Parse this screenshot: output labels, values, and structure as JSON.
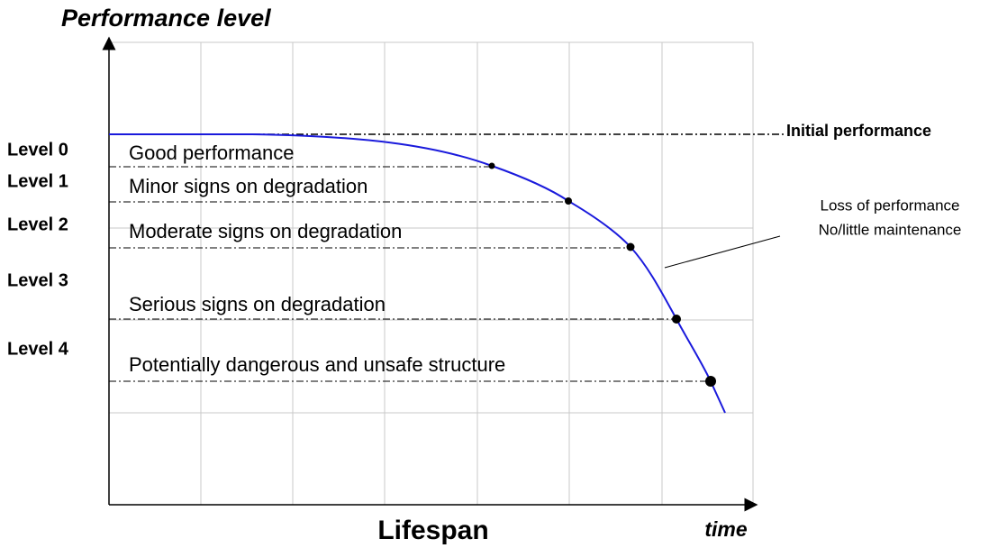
{
  "title": "Performance level",
  "x_axis": {
    "label": "Lifespan",
    "end_label": "time"
  },
  "reference": "Initial performance",
  "levels": [
    "Level 0",
    "Level 1",
    "Level 2",
    "Level 3",
    "Level 4"
  ],
  "zones": [
    "Good performance",
    "Minor signs on degradation",
    "Moderate signs on degradation",
    "Serious signs on degradation",
    "Potentially dangerous and unsafe structure"
  ],
  "annotation": [
    "Loss of performance",
    "No/little maintenance"
  ]
}
